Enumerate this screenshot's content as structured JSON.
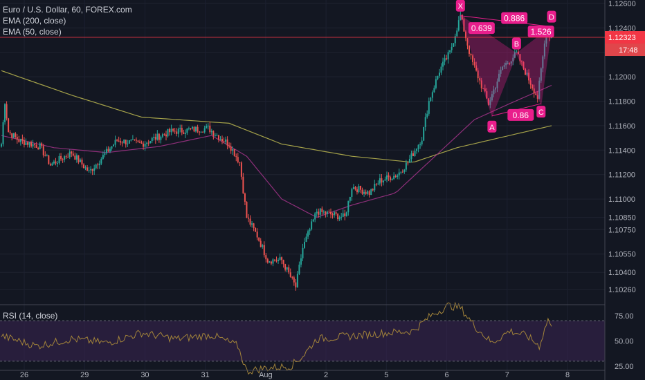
{
  "legend": {
    "title": "Euro / U.S. Dollar, 60, FOREX.com",
    "ema200": "EMA (200, close)",
    "ema50": "EMA (50, close)",
    "rsi": "RSI (14, close)"
  },
  "price_label": {
    "value": "1.12323",
    "countdown": "17:48"
  },
  "colors": {
    "background": "#131722",
    "up": "#26a69a",
    "down": "#ef5350",
    "ema200": "#a6a34a",
    "ema50": "#8e2f7a",
    "pattern": "#e91e8c",
    "rsi_line": "#a3843a",
    "rsi_band": "#3a2452",
    "price_line": "#f23645"
  },
  "chart_data": [
    {
      "type": "candlestick",
      "title": "Euro / U.S. Dollar, 60, FOREX.com",
      "x_ticks": [
        "26",
        "29",
        "30",
        "31",
        "Aug",
        "2",
        "5",
        "6",
        "7",
        "8"
      ],
      "y_ticks": [
        1.126,
        1.124,
        1.12323,
        1.122,
        1.12,
        1.118,
        1.116,
        1.114,
        1.112,
        1.11,
        1.1085,
        1.1075,
        1.1055,
        1.104,
        1.1026
      ],
      "y_tick_labels": [
        "1.12600",
        "1.12400",
        "1.12323",
        "1.12200",
        "1.12000",
        "1.11800",
        "1.11600",
        "1.11400",
        "1.11200",
        "1.11000",
        "1.10850",
        "1.10750",
        "1.10550",
        "1.10400",
        "1.10260"
      ],
      "price_path_keypoints": [
        {
          "t": 0,
          "price": 1.1145
        },
        {
          "t": 2,
          "price": 1.118
        },
        {
          "t": 4,
          "price": 1.1155
        },
        {
          "t": 10,
          "price": 1.1148
        },
        {
          "t": 22,
          "price": 1.1143
        },
        {
          "t": 28,
          "price": 1.1128
        },
        {
          "t": 40,
          "price": 1.1138
        },
        {
          "t": 50,
          "price": 1.1122
        },
        {
          "t": 66,
          "price": 1.1148
        },
        {
          "t": 80,
          "price": 1.1145
        },
        {
          "t": 96,
          "price": 1.1155
        },
        {
          "t": 118,
          "price": 1.1158
        },
        {
          "t": 125,
          "price": 1.115
        },
        {
          "t": 130,
          "price": 1.1145
        },
        {
          "t": 136,
          "price": 1.113
        },
        {
          "t": 140,
          "price": 1.1085
        },
        {
          "t": 146,
          "price": 1.107
        },
        {
          "t": 152,
          "price": 1.105
        },
        {
          "t": 160,
          "price": 1.105
        },
        {
          "t": 168,
          "price": 1.1028
        },
        {
          "t": 172,
          "price": 1.106
        },
        {
          "t": 180,
          "price": 1.109
        },
        {
          "t": 196,
          "price": 1.1085
        },
        {
          "t": 200,
          "price": 1.111
        },
        {
          "t": 210,
          "price": 1.1105
        },
        {
          "t": 216,
          "price": 1.1115
        },
        {
          "t": 226,
          "price": 1.112
        },
        {
          "t": 232,
          "price": 1.113
        },
        {
          "t": 240,
          "price": 1.115
        },
        {
          "t": 244,
          "price": 1.118
        },
        {
          "t": 250,
          "price": 1.1205
        },
        {
          "t": 256,
          "price": 1.122
        },
        {
          "t": 262,
          "price": 1.125
        },
        {
          "t": 268,
          "price": 1.1215
        },
        {
          "t": 278,
          "price": 1.1178
        },
        {
          "t": 286,
          "price": 1.1208
        },
        {
          "t": 294,
          "price": 1.1219
        },
        {
          "t": 306,
          "price": 1.1183
        },
        {
          "t": 311,
          "price": 1.1238
        },
        {
          "t": 314,
          "price": 1.1232
        }
      ],
      "series": [
        {
          "name": "EMA (200, close)",
          "points": [
            {
              "t": 0,
              "v": 1.1205
            },
            {
              "t": 40,
              "v": 1.1185
            },
            {
              "t": 80,
              "v": 1.1167
            },
            {
              "t": 130,
              "v": 1.1162
            },
            {
              "t": 160,
              "v": 1.1145
            },
            {
              "t": 200,
              "v": 1.1135
            },
            {
              "t": 235,
              "v": 1.113
            },
            {
              "t": 260,
              "v": 1.1142
            },
            {
              "t": 290,
              "v": 1.1152
            },
            {
              "t": 314,
              "v": 1.116
            }
          ]
        },
        {
          "name": "EMA (50, close)",
          "points": [
            {
              "t": 0,
              "v": 1.1152
            },
            {
              "t": 30,
              "v": 1.1142
            },
            {
              "t": 60,
              "v": 1.1138
            },
            {
              "t": 90,
              "v": 1.1143
            },
            {
              "t": 120,
              "v": 1.1152
            },
            {
              "t": 140,
              "v": 1.1135
            },
            {
              "t": 160,
              "v": 1.11
            },
            {
              "t": 180,
              "v": 1.1085
            },
            {
              "t": 200,
              "v": 1.1095
            },
            {
              "t": 225,
              "v": 1.1105
            },
            {
              "t": 240,
              "v": 1.1125
            },
            {
              "t": 255,
              "v": 1.1145
            },
            {
              "t": 270,
              "v": 1.1165
            },
            {
              "t": 290,
              "v": 1.1178
            },
            {
              "t": 314,
              "v": 1.1193
            }
          ]
        }
      ],
      "harmonic_pattern": {
        "points": [
          {
            "label": "X",
            "t": 262,
            "price": 1.125
          },
          {
            "label": "A",
            "t": 280,
            "price": 1.1168
          },
          {
            "label": "B",
            "t": 294,
            "price": 1.1219
          },
          {
            "label": "C",
            "t": 308,
            "price": 1.1178
          },
          {
            "label": "D",
            "t": 314,
            "price": 1.1241
          }
        ],
        "ratios": [
          "0.639",
          "0.86",
          "1.526",
          "0.886"
        ]
      },
      "current_price": 1.12323
    },
    {
      "type": "line",
      "title": "RSI (14, close)",
      "y_ticks": [
        75,
        50,
        25
      ],
      "y_tick_labels": [
        "75.00",
        "50.00",
        "25.00"
      ],
      "band": [
        30,
        70
      ],
      "keypoints": [
        {
          "t": 0,
          "v": 55
        },
        {
          "t": 20,
          "v": 45
        },
        {
          "t": 40,
          "v": 52
        },
        {
          "t": 60,
          "v": 48
        },
        {
          "t": 80,
          "v": 58
        },
        {
          "t": 100,
          "v": 52
        },
        {
          "t": 120,
          "v": 56
        },
        {
          "t": 135,
          "v": 45
        },
        {
          "t": 140,
          "v": 20
        },
        {
          "t": 150,
          "v": 23
        },
        {
          "t": 165,
          "v": 25
        },
        {
          "t": 172,
          "v": 35
        },
        {
          "t": 180,
          "v": 52
        },
        {
          "t": 200,
          "v": 55
        },
        {
          "t": 220,
          "v": 58
        },
        {
          "t": 235,
          "v": 60
        },
        {
          "t": 245,
          "v": 75
        },
        {
          "t": 255,
          "v": 85
        },
        {
          "t": 262,
          "v": 83
        },
        {
          "t": 270,
          "v": 65
        },
        {
          "t": 280,
          "v": 48
        },
        {
          "t": 290,
          "v": 60
        },
        {
          "t": 300,
          "v": 55
        },
        {
          "t": 307,
          "v": 45
        },
        {
          "t": 312,
          "v": 72
        },
        {
          "t": 314,
          "v": 62
        }
      ]
    }
  ]
}
